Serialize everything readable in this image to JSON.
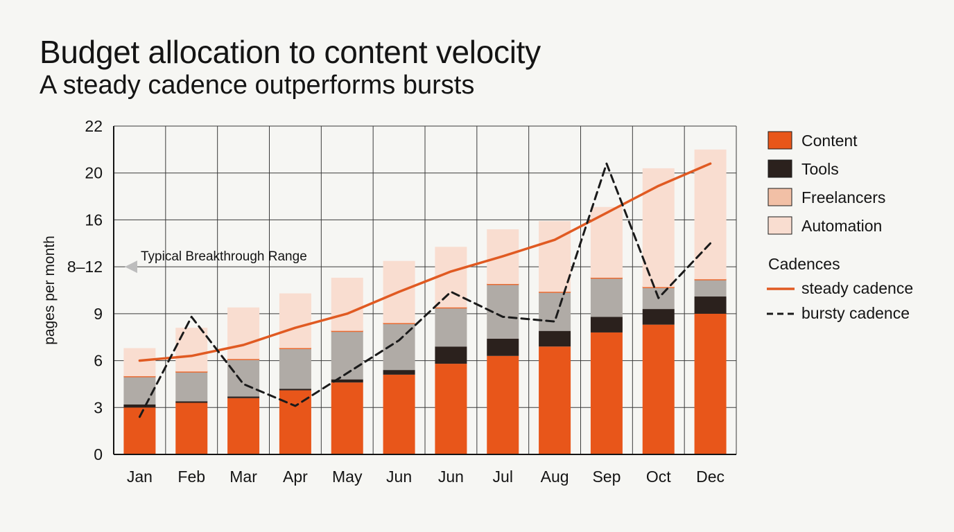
{
  "title": "Budget allocation to content velocity",
  "subtitle": "A steady cadence outperforms bursts",
  "colors": {
    "content": "#e8561a",
    "tools": "#2b211d",
    "freelancers_band": "#b0aba6",
    "freelancers_swatch": "#f2c0a6",
    "automation": "#f9ddd0",
    "divider": "#ea6a30",
    "steady": "#e05a22",
    "bursty": "#1a1a1a",
    "grid": "#3a3a3a"
  },
  "chart_data": {
    "type": "bar",
    "stacked": true,
    "categories": [
      "Jan",
      "Feb",
      "Mar",
      "Apr",
      "May",
      "Jun",
      "Jun",
      "Jul",
      "Aug",
      "Sep",
      "Oct",
      "Dec"
    ],
    "ylabel": "pages per month",
    "y_ticks": [
      "0",
      "3",
      "6",
      "9",
      "8–12",
      "16",
      "20",
      "22"
    ],
    "series": [
      {
        "name": "Content",
        "values": [
          3.0,
          3.3,
          3.6,
          4.1,
          4.6,
          5.1,
          5.8,
          6.3,
          6.9,
          7.8,
          8.3,
          9.0
        ]
      },
      {
        "name": "Tools",
        "values": [
          0.2,
          0.1,
          0.1,
          0.1,
          0.2,
          0.3,
          1.1,
          1.1,
          1.0,
          1.0,
          1.0,
          1.1
        ]
      },
      {
        "name": "Freelancers",
        "values": [
          1.8,
          1.9,
          2.4,
          2.6,
          3.1,
          3.0,
          2.5,
          3.5,
          2.5,
          2.5,
          1.4,
          1.1
        ]
      },
      {
        "name": "Automation",
        "values": [
          1.8,
          2.8,
          3.3,
          3.5,
          3.4,
          4.1,
          4.3,
          4.3,
          5.5,
          5.8,
          9.5,
          9.8
        ]
      }
    ],
    "lines": [
      {
        "name": "steady cadence",
        "style": "solid",
        "values": [
          6.0,
          6.3,
          7.0,
          8.1,
          9.0,
          10.4,
          11.7,
          12.9,
          14.3,
          16.6,
          18.9,
          20.4
        ]
      },
      {
        "name": "bursty cadence",
        "style": "dashed",
        "values": [
          2.4,
          8.8,
          4.5,
          3.1,
          5.2,
          7.3,
          10.4,
          8.8,
          8.5,
          20.4,
          10.0,
          14.0
        ]
      }
    ],
    "annotation": "Typical Breakthrough Range",
    "legend": {
      "position": "right",
      "items": [
        "Content",
        "Tools",
        "Freelancers",
        "Automation"
      ],
      "cadences_heading": "Cadences",
      "line_items": [
        "steady cadence",
        "bursty cadence"
      ]
    },
    "grid": true
  }
}
